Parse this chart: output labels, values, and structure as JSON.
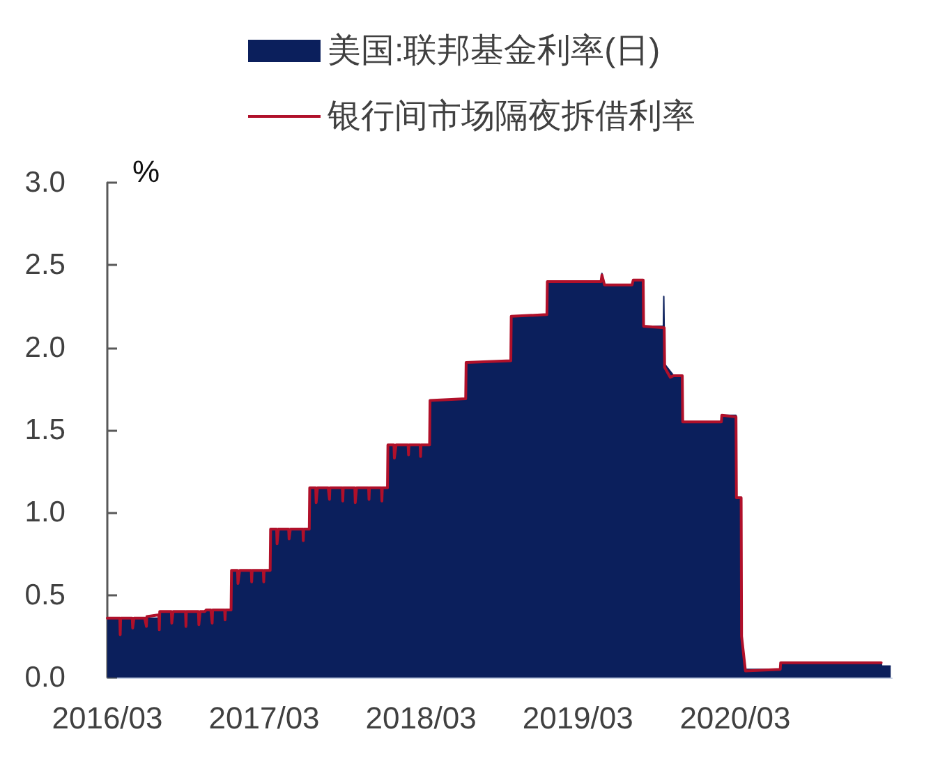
{
  "chart_data": {
    "type": "area",
    "ylabel": "%",
    "legend": "top",
    "xlim": [
      "2016-03-01",
      "2021-03-01"
    ],
    "xticks": [
      {
        "value": "2016-03-01",
        "label": "2016/03"
      },
      {
        "value": "2017-03-01",
        "label": "2017/03"
      },
      {
        "value": "2018-03-01",
        "label": "2018/03"
      },
      {
        "value": "2019-03-01",
        "label": "2019/03"
      },
      {
        "value": "2020-03-01",
        "label": "2020/03"
      }
    ],
    "ylim": [
      0,
      3
    ],
    "yticks": [
      {
        "value": 0,
        "label": "0.0"
      },
      0.5,
      {
        "value": 1,
        "label": "1.0"
      },
      1.5,
      {
        "value": 2,
        "label": "2.0"
      },
      2.5,
      {
        "value": 3,
        "label": "3.0"
      }
    ],
    "series": [
      {
        "name": "美国:联邦基金利率(日)",
        "color": "#0b1f5c",
        "x": [
          "2016-03-01",
          "2016-06-30",
          "2016-07-01",
          "2016-10-16",
          "2016-10-17",
          "2016-12-14",
          "2016-12-15",
          "2017-03-15",
          "2017-03-16",
          "2017-06-14",
          "2017-06-15",
          "2017-12-13",
          "2017-12-14",
          "2018-03-21",
          "2018-03-22",
          "2018-06-13",
          "2018-06-14",
          "2018-09-26",
          "2018-09-27",
          "2018-12-19",
          "2018-12-20",
          "2019-04-24",
          "2019-04-26",
          "2019-04-30",
          "2019-05-02",
          "2019-07-05",
          "2019-07-08",
          "2019-07-31",
          "2019-08-01",
          "2019-09-16",
          "2019-09-17",
          "2019-09-19",
          "2019-10-10",
          "2019-10-30",
          "2019-10-31",
          "2020-01-29",
          "2020-01-30",
          "2020-03-03",
          "2020-03-04",
          "2020-03-15",
          "2020-03-16",
          "2020-03-25",
          "2020-06-14",
          "2020-06-15",
          "2021-02-04",
          "2021-02-05",
          "2021-02-26"
        ],
        "values": [
          0.36,
          0.36,
          0.4,
          0.4,
          0.41,
          0.41,
          0.65,
          0.65,
          0.9,
          0.9,
          1.15,
          1.15,
          1.41,
          1.41,
          1.68,
          1.68,
          1.91,
          1.91,
          2.19,
          2.19,
          2.4,
          2.4,
          2.45,
          2.4,
          2.38,
          2.38,
          2.41,
          2.41,
          2.13,
          2.13,
          2.31,
          1.9,
          1.83,
          1.83,
          1.55,
          1.55,
          1.59,
          1.59,
          1.09,
          1.09,
          0.25,
          0.05,
          0.05,
          0.09,
          0.09,
          0.07,
          0.07
        ]
      },
      {
        "name": "银行间市场隔夜拆借利率",
        "type": "line",
        "color": "#b0102a",
        "x": [
          "2016-03-01",
          "2016-03-30",
          "2016-03-31",
          "2016-04-01",
          "2016-04-28",
          "2016-04-29",
          "2016-05-02",
          "2016-05-27",
          "2016-05-31",
          "2016-06-01",
          "2016-06-29",
          "2016-06-30",
          "2016-07-01",
          "2016-07-28",
          "2016-07-29",
          "2016-08-01",
          "2016-08-30",
          "2016-08-31",
          "2016-09-01",
          "2016-09-29",
          "2016-09-30",
          "2016-10-03",
          "2016-10-14",
          "2016-10-17",
          "2016-10-28",
          "2016-10-31",
          "2016-11-01",
          "2016-11-29",
          "2016-11-30",
          "2016-12-01",
          "2016-12-14",
          "2016-12-15",
          "2016-12-29",
          "2016-12-30",
          "2017-01-03",
          "2017-01-30",
          "2017-01-31",
          "2017-02-01",
          "2017-02-27",
          "2017-02-28",
          "2017-03-01",
          "2017-03-15",
          "2017-03-16",
          "2017-03-30",
          "2017-03-31",
          "2017-04-03",
          "2017-04-27",
          "2017-04-28",
          "2017-05-01",
          "2017-05-30",
          "2017-05-31",
          "2017-06-01",
          "2017-06-14",
          "2017-06-15",
          "2017-06-29",
          "2017-06-30",
          "2017-07-03",
          "2017-07-28",
          "2017-07-31",
          "2017-08-01",
          "2017-08-30",
          "2017-08-31",
          "2017-09-01",
          "2017-09-28",
          "2017-09-29",
          "2017-10-02",
          "2017-10-30",
          "2017-10-31",
          "2017-11-01",
          "2017-11-29",
          "2017-11-30",
          "2017-12-01",
          "2017-12-13",
          "2017-12-14",
          "2017-12-28",
          "2017-12-29",
          "2018-01-02",
          "2018-01-30",
          "2018-01-31",
          "2018-02-01",
          "2018-02-27",
          "2018-02-28",
          "2018-03-01",
          "2018-03-21",
          "2018-03-22",
          "2018-06-13",
          "2018-06-14",
          "2018-09-26",
          "2018-09-27",
          "2018-12-19",
          "2018-12-20",
          "2019-04-24",
          "2019-04-26",
          "2019-04-30",
          "2019-05-02",
          "2019-07-05",
          "2019-07-08",
          "2019-07-31",
          "2019-08-01",
          "2019-09-18",
          "2019-09-19",
          "2019-10-02",
          "2019-10-10",
          "2019-10-30",
          "2019-10-31",
          "2020-01-29",
          "2020-01-30",
          "2020-03-03",
          "2020-03-04",
          "2020-03-15",
          "2020-03-16",
          "2020-03-25",
          "2020-06-14",
          "2020-06-15",
          "2021-02-04"
        ],
        "values": [
          0.36,
          0.36,
          0.26,
          0.36,
          0.36,
          0.3,
          0.36,
          0.36,
          0.31,
          0.37,
          0.38,
          0.29,
          0.4,
          0.4,
          0.33,
          0.4,
          0.4,
          0.31,
          0.4,
          0.4,
          0.32,
          0.4,
          0.4,
          0.41,
          0.41,
          0.33,
          0.41,
          0.41,
          0.35,
          0.41,
          0.41,
          0.65,
          0.65,
          0.57,
          0.65,
          0.65,
          0.58,
          0.65,
          0.65,
          0.58,
          0.65,
          0.65,
          0.9,
          0.9,
          0.81,
          0.9,
          0.9,
          0.84,
          0.9,
          0.9,
          0.83,
          0.9,
          0.9,
          1.15,
          1.15,
          1.06,
          1.15,
          1.15,
          1.08,
          1.15,
          1.15,
          1.07,
          1.15,
          1.15,
          1.06,
          1.15,
          1.15,
          1.08,
          1.15,
          1.15,
          1.07,
          1.15,
          1.15,
          1.41,
          1.41,
          1.33,
          1.41,
          1.41,
          1.35,
          1.41,
          1.41,
          1.34,
          1.41,
          1.41,
          1.68,
          1.69,
          1.91,
          1.92,
          2.19,
          2.2,
          2.4,
          2.4,
          2.44,
          2.4,
          2.38,
          2.38,
          2.41,
          2.41,
          2.13,
          2.12,
          1.88,
          1.82,
          1.83,
          1.83,
          1.55,
          1.55,
          1.59,
          1.58,
          1.09,
          1.09,
          0.25,
          0.04,
          0.05,
          0.09,
          0.09
        ]
      }
    ]
  }
}
